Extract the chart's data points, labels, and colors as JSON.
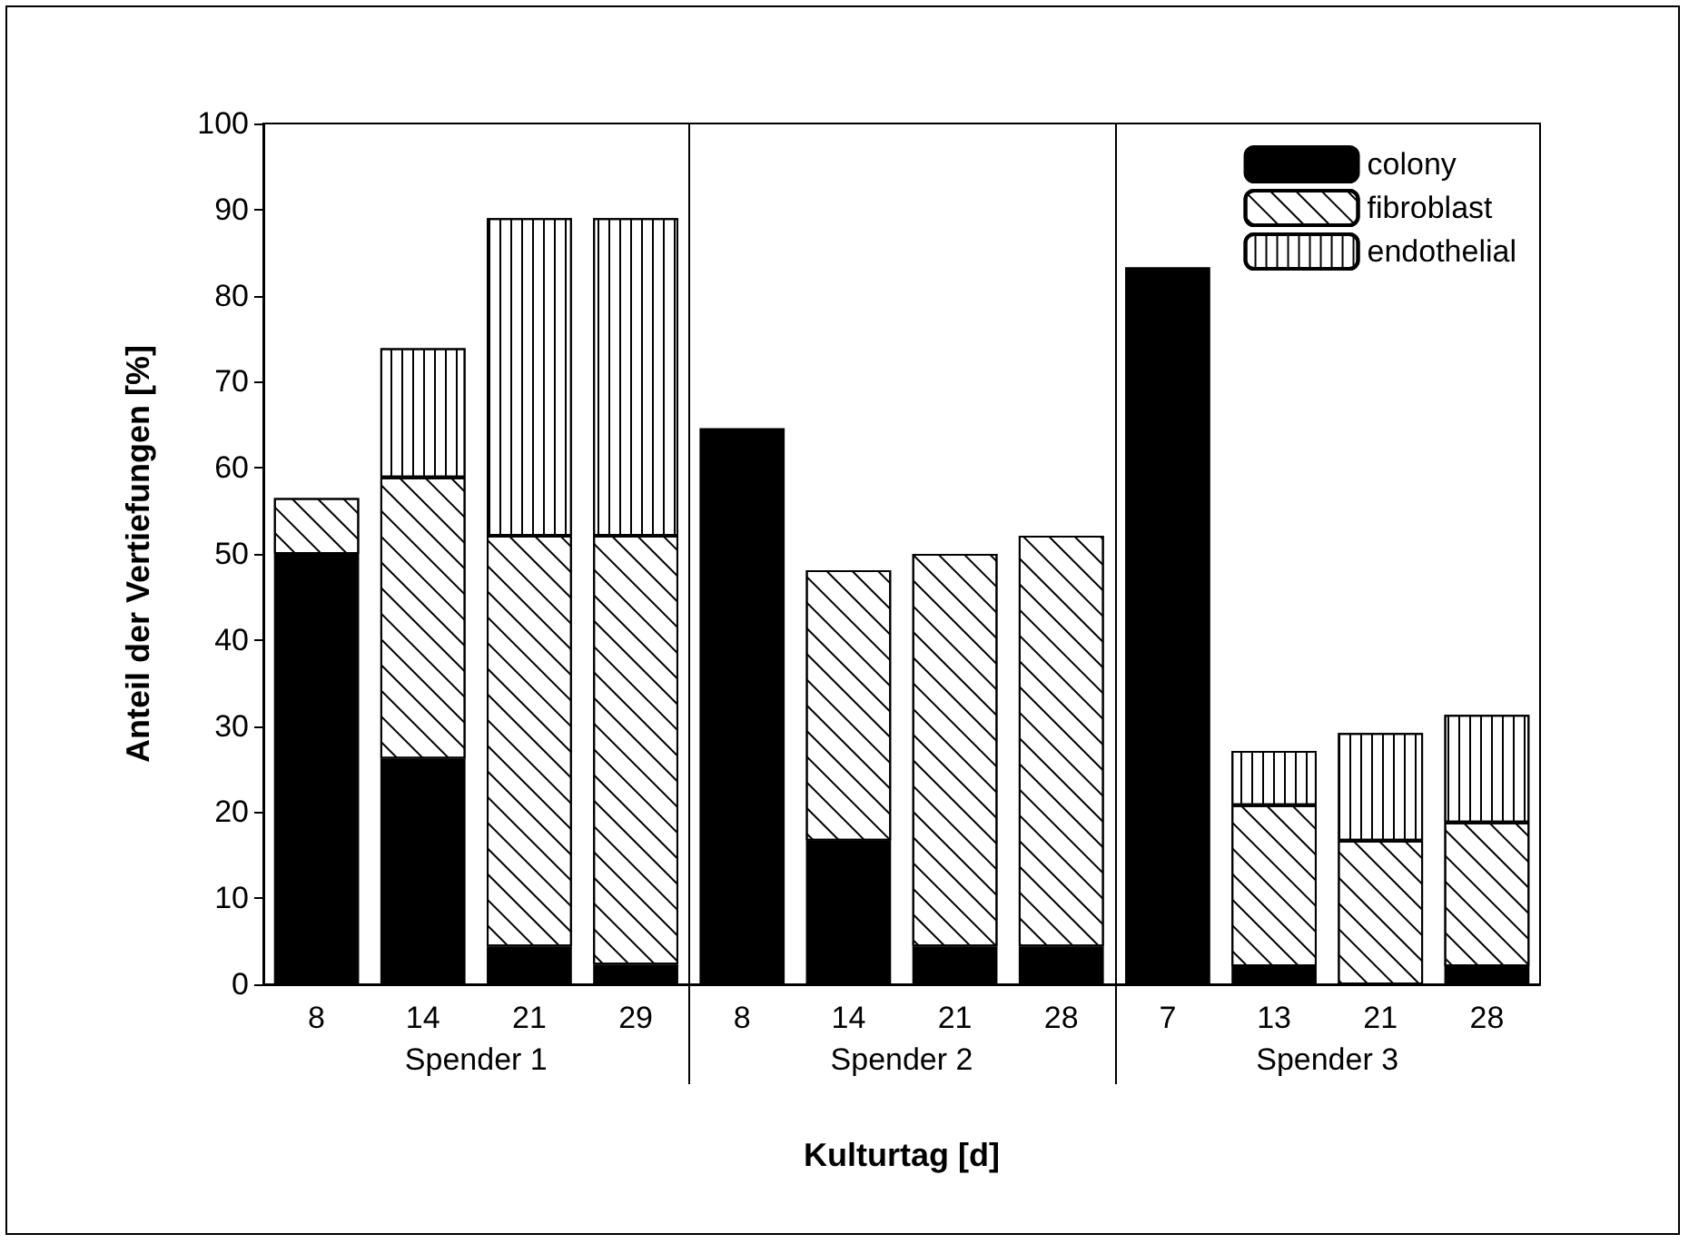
{
  "chart_data": {
    "type": "bar",
    "stacked": true,
    "xlabel": "Kulturtag [d]",
    "ylabel": "Anteil der Vertiefungen [%]",
    "categories": [
      "8",
      "14",
      "21",
      "29",
      "8",
      "14",
      "21",
      "28",
      "7",
      "13",
      "21",
      "28"
    ],
    "series": [
      {
        "name": "colony",
        "color": "#000000",
        "values": [
          50,
          26.2,
          4.4,
          2.3,
          64.6,
          16.7,
          4.4,
          4.4,
          83.3,
          2.1,
          0,
          2.1
        ]
      },
      {
        "name": "fibroblast",
        "color": "#ffffff",
        "values": [
          6.5,
          32.7,
          47.7,
          49.8,
          null,
          31.4,
          45.6,
          47.7,
          null,
          18.7,
          16.7,
          16.7
        ]
      },
      {
        "name": "endothelial",
        "color": "#ffffff",
        "values": [
          null,
          15,
          36.9,
          36.9,
          null,
          null,
          null,
          null,
          null,
          6.3,
          12.5,
          12.5
        ]
      }
    ],
    "ylim": [
      0,
      100
    ],
    "yticks": [
      0,
      10,
      20,
      30,
      40,
      50,
      60,
      70,
      80,
      90,
      100
    ],
    "grid": false,
    "legend": "top right",
    "annotations": [
      "Spender 1",
      "Spender 2",
      "Spender 3"
    ]
  }
}
